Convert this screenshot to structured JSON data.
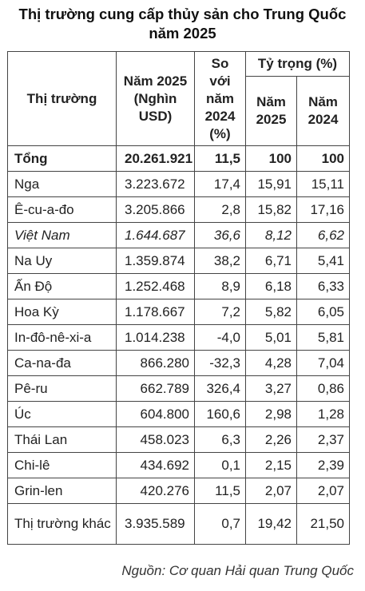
{
  "title": "Thị trường cung cấp thủy sản cho Trung Quốc\nnăm 2025",
  "headers": {
    "market": "Thị trường",
    "value": "Năm 2025 (Nghìn USD)",
    "change": "So với năm 2024 (%)",
    "share": "Tỷ trọng (%)",
    "share_2025": "Năm 2025",
    "share_2024": "Năm 2024"
  },
  "rows": [
    {
      "market": "Tổng",
      "value": "20.261.921",
      "change": "11,5",
      "share_2025": "100",
      "share_2024": "100"
    },
    {
      "market": "Nga",
      "value": "3.223.672",
      "change": "17,4",
      "share_2025": "15,91",
      "share_2024": "15,11"
    },
    {
      "market": "Ê-cu-a-đo",
      "value": "3.205.866",
      "change": "2,8",
      "share_2025": "15,82",
      "share_2024": "17,16"
    },
    {
      "market": "Việt Nam",
      "value": "1.644.687",
      "change": "36,6",
      "share_2025": "8,12",
      "share_2024": "6,62"
    },
    {
      "market": "Na Uy",
      "value": "1.359.874",
      "change": "38,2",
      "share_2025": "6,71",
      "share_2024": "5,41"
    },
    {
      "market": "Ấn Độ",
      "value": "1.252.468",
      "change": "8,9",
      "share_2025": "6,18",
      "share_2024": "6,33"
    },
    {
      "market": "Hoa Kỳ",
      "value": "1.178.667",
      "change": "7,2",
      "share_2025": "5,82",
      "share_2024": "6,05"
    },
    {
      "market": "In-đô-nê-xi-a",
      "value": "1.014.238",
      "change": "-4,0",
      "share_2025": "5,01",
      "share_2024": "5,81"
    },
    {
      "market": "Ca-na-đa",
      "value": "866.280",
      "change": "-32,3",
      "share_2025": "4,28",
      "share_2024": "7,04"
    },
    {
      "market": "Pê-ru",
      "value": "662.789",
      "change": "326,4",
      "share_2025": "3,27",
      "share_2024": "0,86"
    },
    {
      "market": "Úc",
      "value": "604.800",
      "change": "160,6",
      "share_2025": "2,98",
      "share_2024": "1,28"
    },
    {
      "market": "Thái Lan",
      "value": "458.023",
      "change": "6,3",
      "share_2025": "2,26",
      "share_2024": "2,37"
    },
    {
      "market": "Chi-lê",
      "value": "434.692",
      "change": "0,1",
      "share_2025": "2,15",
      "share_2024": "2,39"
    },
    {
      "market": "Grin-len",
      "value": "420.276",
      "change": "11,5",
      "share_2025": "2,07",
      "share_2024": "2,07"
    },
    {
      "market": "Thị trường khác",
      "value": "3.935.589",
      "change": "0,7",
      "share_2025": "19,42",
      "share_2024": "21,50"
    }
  ],
  "source": "Nguồn: Cơ quan Hải quan Trung Quốc"
}
